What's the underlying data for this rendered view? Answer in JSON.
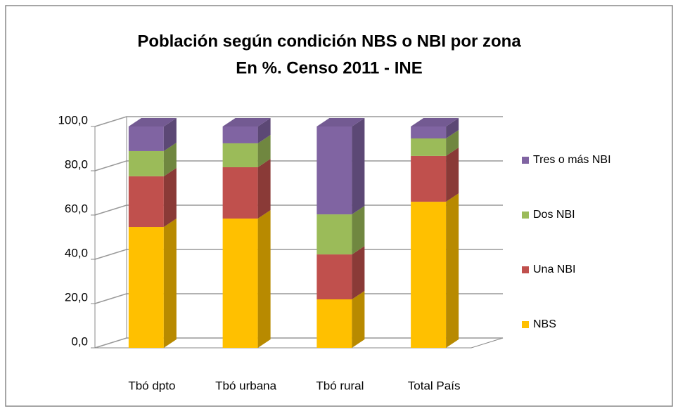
{
  "chart_data": {
    "type": "stacked_bar_3d",
    "title": "Población según condición NBS o NBI por zona",
    "subtitle": "En %.  Censo 2011 - INE",
    "categories": [
      "Tbó dpto",
      "Tbó urbana",
      "Tbó rural",
      "Total País"
    ],
    "series": [
      {
        "name": "NBS",
        "color": "#ffc000",
        "values": [
          54.6,
          58.4,
          21.9,
          66.0
        ]
      },
      {
        "name": "Una NBI",
        "color": "#c0504d",
        "values": [
          22.9,
          23.2,
          20.3,
          20.7
        ]
      },
      {
        "name": "Dos NBI",
        "color": "#9bbb59",
        "values": [
          11.4,
          10.8,
          18.1,
          7.9
        ]
      },
      {
        "name": "Tres o más NBI",
        "color": "#8064a2",
        "values": [
          11.1,
          7.6,
          39.7,
          5.4
        ]
      }
    ],
    "ylim": [
      0,
      100
    ],
    "yticks": [
      {
        "value": 0,
        "label": "0,0"
      },
      {
        "value": 20,
        "label": "20,0"
      },
      {
        "value": 40,
        "label": "40,0"
      },
      {
        "value": 60,
        "label": "60,0"
      },
      {
        "value": 80,
        "label": "80,0"
      },
      {
        "value": 100,
        "label": "100,0"
      }
    ],
    "grid": true,
    "legend": "right"
  }
}
